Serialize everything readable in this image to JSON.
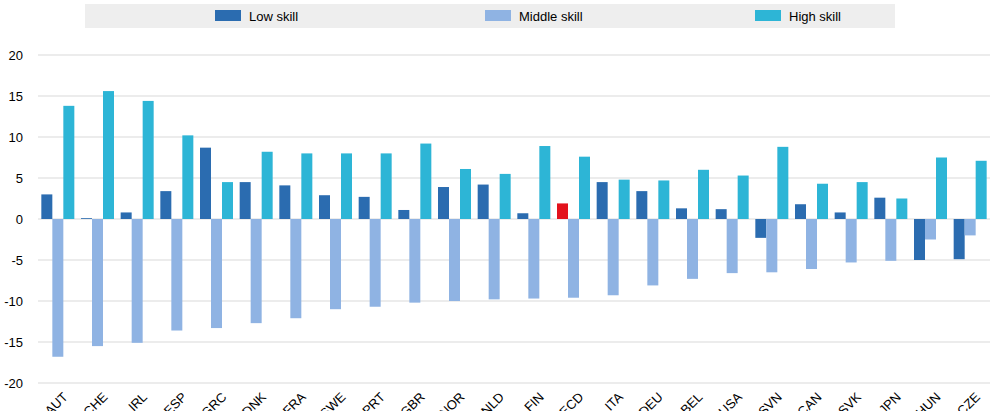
{
  "chart_data": {
    "type": "bar",
    "categories": [
      "AUT",
      "CHE",
      "IRL",
      "ESP",
      "GRC",
      "DNK",
      "FRA",
      "SWE",
      "PRT",
      "GBR",
      "NOR",
      "NLD",
      "FIN",
      "OECD",
      "ITA",
      "DEU",
      "BEL",
      "USA",
      "SVN",
      "CAN",
      "SVK",
      "JPN",
      "HUN",
      "CZE"
    ],
    "series": [
      {
        "name": "Low skill",
        "color": "#2b6cb0",
        "colors": [
          "#2b6cb0",
          "#2b6cb0",
          "#2b6cb0",
          "#2b6cb0",
          "#2b6cb0",
          "#2b6cb0",
          "#2b6cb0",
          "#2b6cb0",
          "#2b6cb0",
          "#2b6cb0",
          "#2b6cb0",
          "#2b6cb0",
          "#2b6cb0",
          "#e3121c",
          "#2b6cb0",
          "#2b6cb0",
          "#2b6cb0",
          "#2b6cb0",
          "#2b6cb0",
          "#2b6cb0",
          "#2b6cb0",
          "#2b6cb0",
          "#2b6cb0",
          "#2b6cb0"
        ],
        "values": [
          3.0,
          0.1,
          0.8,
          3.4,
          8.7,
          4.5,
          4.1,
          2.9,
          2.7,
          1.1,
          3.9,
          4.2,
          0.7,
          1.9,
          4.5,
          3.4,
          1.3,
          1.2,
          -2.3,
          1.8,
          0.8,
          2.6,
          -5.0,
          -4.9
        ]
      },
      {
        "name": "Middle skill",
        "color": "#8fb3e3",
        "values": [
          -16.8,
          -15.5,
          -15.1,
          -13.6,
          -13.3,
          -12.7,
          -12.1,
          -11.0,
          -10.7,
          -10.2,
          -10.0,
          -9.8,
          -9.7,
          -9.6,
          -9.3,
          -8.1,
          -7.3,
          -6.6,
          -6.5,
          -6.1,
          -5.3,
          -5.1,
          -2.5,
          -2.0
        ]
      },
      {
        "name": "High skill",
        "color": "#2db5d6",
        "values": [
          13.8,
          15.6,
          14.4,
          10.2,
          4.5,
          8.2,
          8.0,
          8.0,
          8.0,
          9.2,
          6.1,
          5.5,
          8.9,
          7.6,
          4.8,
          4.7,
          6.0,
          5.3,
          8.8,
          4.3,
          4.5,
          2.5,
          7.5,
          7.1
        ]
      }
    ],
    "ylim": [
      -20,
      20
    ],
    "yticks": [
      -20,
      -15,
      -10,
      -5,
      0,
      5,
      10,
      15,
      20
    ],
    "grid": true,
    "legend": "top"
  }
}
